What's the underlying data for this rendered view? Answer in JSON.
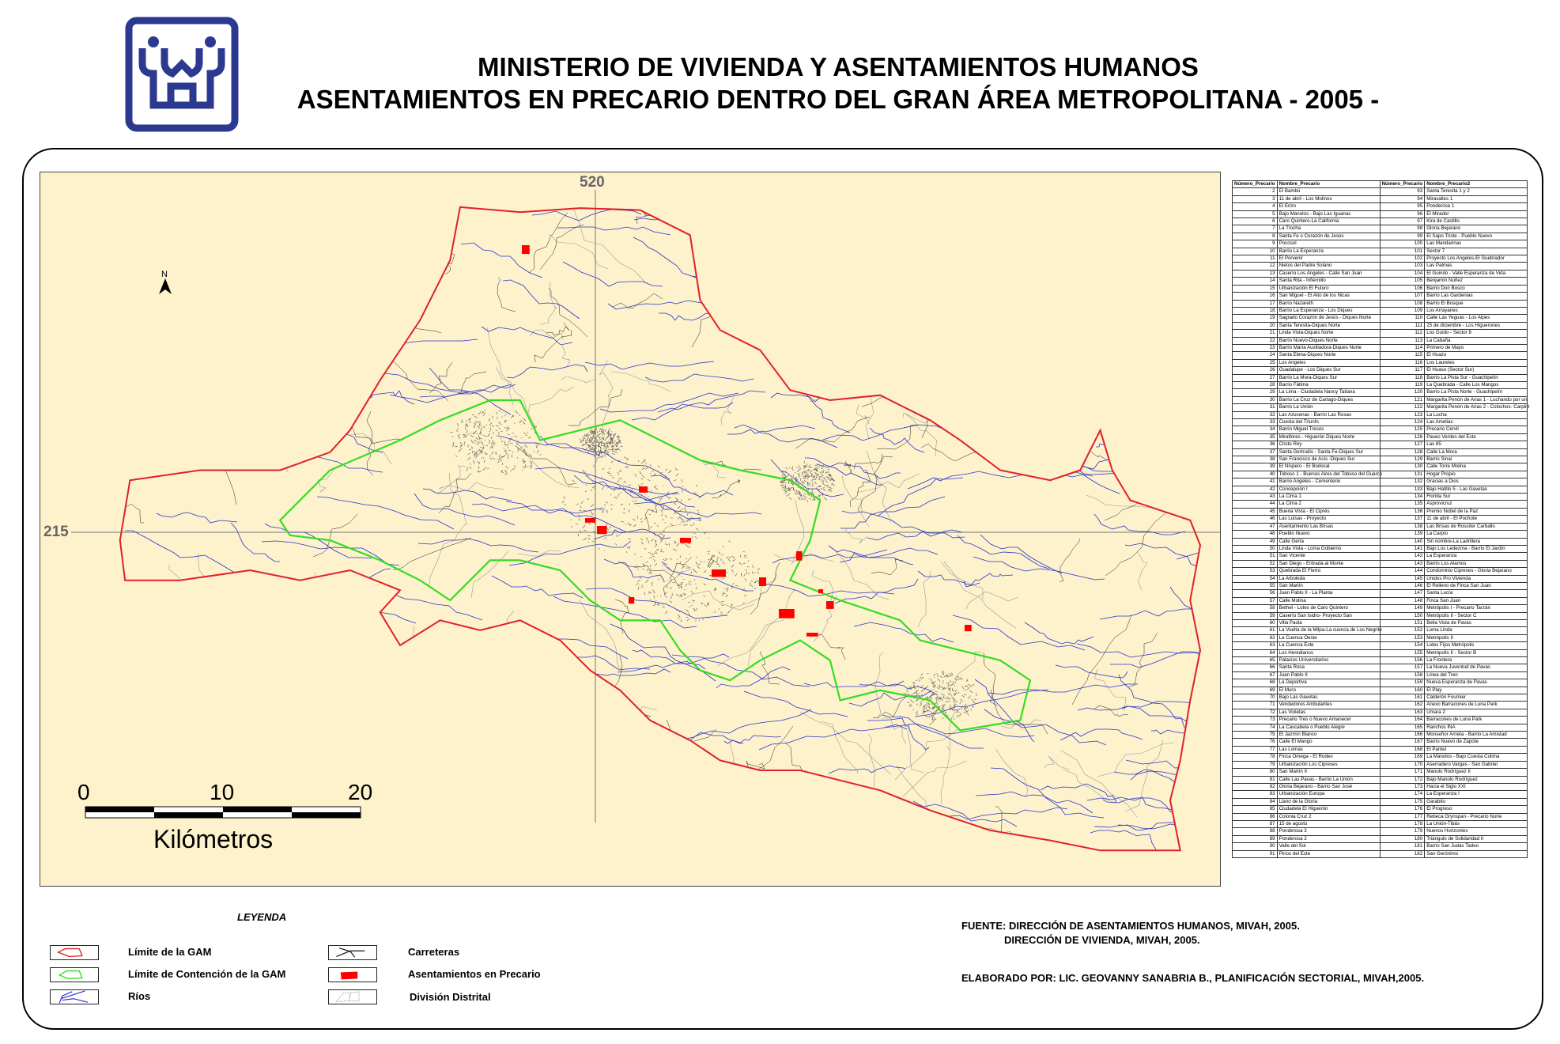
{
  "header": {
    "title_line1": "MINISTERIO DE VIVIENDA Y ASENTAMIENTOS HUMANOS",
    "title_line2": "ASENTAMIENTOS EN PRECARIO DENTRO DEL GRAN ÁREA METROPOLITANA - 2005 -",
    "logo_icon": "mivah-logo",
    "brand_color": "#2b3990"
  },
  "map": {
    "coord_x_label": "520",
    "coord_y_label": "215",
    "north_label": "N",
    "scale": {
      "ticks": [
        "0",
        "10",
        "20"
      ],
      "unit": "Kilómetros"
    },
    "colors": {
      "background": "#fdf2cc",
      "gam_limit": "#e0202a",
      "containment": "#33dd22",
      "rivers": "#2a35c8",
      "roads": "#222222",
      "settlements": "#ff0000",
      "districts": "#9a9a9a"
    }
  },
  "legend": {
    "title": "LEYENDA",
    "items": [
      {
        "label": "Límite de la GAM",
        "icon": "red-polygon"
      },
      {
        "label": "Límite de Contención de la GAM",
        "icon": "green-polygon"
      },
      {
        "label": "Ríos",
        "icon": "blue-lines"
      },
      {
        "label": "Carreteras",
        "icon": "black-lines"
      },
      {
        "label": "Asentamientos en Precario",
        "icon": "red-fill"
      },
      {
        "label": "División Distrital",
        "icon": "gray-dashed-polygon"
      }
    ]
  },
  "credits": {
    "fuente_1": "FUENTE: DIRECCIÓN DE ASENTAMIENTOS HUMANOS, MIVAH, 2005.",
    "fuente_2": "DIRECCIÓN DE VIVIENDA, MIVAH,  2005.",
    "elaborado": "ELABORADO POR: LIC. GEOVANNY SANABRIA B., PLANIFICACIÓN SECTORIAL, MIVAH,2005."
  },
  "table": {
    "headers": [
      "Número_Precario",
      "Nombre_Precario",
      "Número_Precario",
      "Nombre_Precario2"
    ],
    "rows": [
      [
        "2",
        "El Bambú",
        "93",
        "Santa Teresita 1 y 2"
      ],
      [
        "3",
        "11 de abril - Los Molinos",
        "94",
        "Miravalles 1"
      ],
      [
        "4",
        "El Erizo",
        "95",
        "Ponderosa 1"
      ],
      [
        "5",
        "Bajo Manolos - Bajo Las Iguanas",
        "96",
        "El Mirador"
      ],
      [
        "6",
        "Caro Quintero-La California",
        "97",
        "Kira de Castillo"
      ],
      [
        "7",
        "La Trocha",
        "98",
        "Gloria Bejarano"
      ],
      [
        "8",
        "Santa Fe o Corazón de Jesús",
        "99",
        "El Sapo Triste - Pueblo Nuevo"
      ],
      [
        "9",
        "Pocosol",
        "100",
        "Las Mandarinas"
      ],
      [
        "10",
        "Barrio La Esperanza",
        "101",
        "Sector 7"
      ],
      [
        "11",
        "El Porvenir",
        "102",
        "Proyecto Los Angeles-El Guebrador"
      ],
      [
        "12",
        "Nietos del Padre Solano",
        "103",
        "Las Palmas"
      ],
      [
        "13",
        "Caserío Los Ángeles - Calle San Juan",
        "104",
        "El Guindo - Valle Esperanza de Vida"
      ],
      [
        "14",
        "Santa Rita - Infiernillo",
        "105",
        "Benjamín Núñez"
      ],
      [
        "15",
        "Urbanización El Futuro",
        "106",
        "Barrio Don Bosco"
      ],
      [
        "16",
        "San Miguel - El Alto de los Nicas",
        "107",
        "Barrio Las Gardenias"
      ],
      [
        "17",
        "Barrio Nazareth",
        "108",
        "Barrio El Bosque"
      ],
      [
        "18",
        "Barrio La Esperanza - Los Diques",
        "109",
        "Los Arrayanes"
      ],
      [
        "19",
        "Sagrado Corazón de Jesús - Diques Norte",
        "110",
        "Calle Las Yeguas - Los Alpes"
      ],
      [
        "20",
        "Santa Teresita-Diques Norte",
        "111",
        "25 de diciembre - Los Higuerones"
      ],
      [
        "21",
        "Linda Vista-Diques Norte",
        "112",
        "Los Guido - Sector 8"
      ],
      [
        "22",
        "Barrio Nuevo-Diques Norte",
        "113",
        "La Cabaña"
      ],
      [
        "23",
        "Barrio María Auxiliadora-Diques Norte",
        "114",
        "Primero de Mayo"
      ],
      [
        "24",
        "Santa Elena-Diques Norte",
        "115",
        "El Huazo"
      ],
      [
        "25",
        "Los Angeles",
        "116",
        "Los Laureles"
      ],
      [
        "26",
        "Guadalupe - Los Diques Sur",
        "117",
        "El Huaso (Sector Sur)"
      ],
      [
        "27",
        "Barrio La Mora-Diques Sur",
        "118",
        "Barrio La Pista Sur - Guachipelín"
      ],
      [
        "28",
        "Barrio Fátima",
        "119",
        "La Quebrada - Calle Los Mangos"
      ],
      [
        "29",
        "La Lima - Ciudadela Nancy Tatiana",
        "120",
        "Barrio La Pista Norte - Guachipelín"
      ],
      [
        "30",
        "Barrio La Cruz de Cartago-Diques",
        "121",
        "Margarita Penón de Arias 1 - Luchando por un"
      ],
      [
        "31",
        "Barrio La Unión",
        "122",
        "Margarita Penón de Arias 2 - Colochos- Carpint"
      ],
      [
        "32",
        "Las Azucenas - Barrio Las Rosas",
        "123",
        "La Lucha"
      ],
      [
        "33",
        "Cuesta del Triunfo",
        "124",
        "Las Amelias"
      ],
      [
        "34",
        "Barrio Miguel Tresos",
        "125",
        "Precario Cervil"
      ],
      [
        "35",
        "Miraflores - Higuerón Diques Norte",
        "126",
        "Paseo Verdes del Este"
      ],
      [
        "36",
        "Cristo Rey",
        "127",
        "Las 85"
      ],
      [
        "37",
        "Santa Gertrudis - Santa Fe-Diques Sur",
        "128",
        "Calle La Mora"
      ],
      [
        "38",
        "San Francisco de Asís -Diques Sur",
        "129",
        "Barrio Sinaí"
      ],
      [
        "39",
        "El Níspero - El Bodocal",
        "130",
        "Calle Torre Molina"
      ],
      [
        "40",
        "Toboso 1 - Buenos Aires del Toboso del Guarco",
        "131",
        "Hogar Propio"
      ],
      [
        "41",
        "Barrio Angeles - Cementerio",
        "132",
        "Gracias a Dios"
      ],
      [
        "42",
        "Concepción I",
        "133",
        "Bajo Hatillo 5 - Las Gavetas"
      ],
      [
        "43",
        "La Cima 1",
        "134",
        "Florida Sur"
      ],
      [
        "44",
        "La Cima 2",
        "135",
        "Asprovicruz"
      ],
      [
        "45",
        "Buena Vista - El Ciprés",
        "136",
        "Premio Nobel de la Paz"
      ],
      [
        "46",
        "Las Luisas - Proyecto",
        "137",
        "11 de abril - El Pochote"
      ],
      [
        "47",
        "Asentamiento Las Brisas",
        "138",
        "Las Brisas de Rossiter Carballo"
      ],
      [
        "48",
        "Pueblo Nuevo",
        "139",
        "La Carpio"
      ],
      [
        "49",
        "Calle Gerta",
        "140",
        "Sin nombre-La Ladrillera"
      ],
      [
        "50",
        "Linda Vista - Loma Gobierno",
        "141",
        "Bajo Los Ledezma - Barrio El Jardín"
      ],
      [
        "51",
        "San Vicente",
        "142",
        "La Esperanza"
      ],
      [
        "52",
        "San Diego - Entrada al Monte",
        "143",
        "Barrio Los Alamos"
      ],
      [
        "53",
        "Quebrada El Fierro",
        "144",
        "Condominio Cipreses - Gloria Bejarano"
      ],
      [
        "54",
        "La Arboleda",
        "145",
        "Unidos Pro Vivienda"
      ],
      [
        "55",
        "San Martín",
        "146",
        "El Relleno de Finca San Juan"
      ],
      [
        "56",
        "Juan Pablo II - La Planta",
        "147",
        "Santa Lucía"
      ],
      [
        "57",
        "Calle Molina",
        "148",
        "Finca San Juan"
      ],
      [
        "58",
        "Bethel - Lotes de Caro Quintero",
        "149",
        "Metrópolis I - Precario Tarzán"
      ],
      [
        "59",
        "Caserío San Isidro- Proyecto San",
        "150",
        "Metrópolis II - Sector C"
      ],
      [
        "60",
        "Villa Paola",
        "151",
        "Bella Vista de Pavas"
      ],
      [
        "61",
        "La Vuelta de la Milpa-La cuenca de Los Negrito",
        "152",
        "Loma Linda"
      ],
      [
        "62",
        "La Cuenca Oeste",
        "153",
        "Metrópolis II"
      ],
      [
        "63",
        "La Cuenca Este",
        "154",
        "Lotes Fijos Metrópolis"
      ],
      [
        "64",
        "Los Heredianos",
        "155",
        "Metrópolis II - Sector B"
      ],
      [
        "65",
        "Palacios Universitarios",
        "156",
        "La Frontera"
      ],
      [
        "66",
        "Santa Rosa",
        "157",
        "La Nueva Juventud de Pavas"
      ],
      [
        "67",
        "Juan Pablo II",
        "158",
        "Línea del Tren"
      ],
      [
        "68",
        "La Deportiva",
        "159",
        "Nueva Esperanza de Pavas"
      ],
      [
        "69",
        "El Muro",
        "160",
        "El Play"
      ],
      [
        "70",
        "Bajo Las Gavetas",
        "161",
        "Calderón Fournier"
      ],
      [
        "71",
        "Vendedores Ambulantes",
        "162",
        "Anexo Barracones de Luna Park"
      ],
      [
        "72",
        "Las Violetas",
        "163",
        "Umara 2"
      ],
      [
        "73",
        "Precario Tres o Nuevo Amanecer",
        "164",
        "Barracones de Luna Park"
      ],
      [
        "74",
        "La Cascabela o Pueblo Alegre",
        "165",
        "Ranchos INA"
      ],
      [
        "75",
        "El Jazmín Blanco",
        "166",
        "Monseñor Arrieta - Barrio La Amistad"
      ],
      [
        "76",
        "Calle El Mango",
        "167",
        "Barrio Nuevo de Zapote"
      ],
      [
        "77",
        "Las Lomas",
        "168",
        "El Pantel"
      ],
      [
        "78",
        "Finca Omega - El Rodeo",
        "169",
        "La Manolos - Bajo Cuesta Colima"
      ],
      [
        "79",
        "Urbanización Los Cipreses",
        "170",
        "Aserradero Vargas - San Gabriel"
      ],
      [
        "80",
        "San Martín II",
        "171",
        "Manolo Rodríguez II"
      ],
      [
        "81",
        "Calle Las Pavas - Barrio La Unión",
        "172",
        "Bajo Manolo Rodríguez"
      ],
      [
        "82",
        "Gloria Bejarano - Barrio San José",
        "173",
        "Hacia el Siglo XXI"
      ],
      [
        "83",
        "Urbanización Europa",
        "174",
        "La Esperanza I"
      ],
      [
        "84",
        "Llano de la Gloria",
        "175",
        "Garabito"
      ],
      [
        "85",
        "Ciudadela El Higuerón",
        "176",
        "El Progreso"
      ],
      [
        "86",
        "Colonia Cruz 2",
        "177",
        "Rebeca Grynspan - Precario Norte"
      ],
      [
        "87",
        "15 de agosto",
        "178",
        "La Unión-Tibás"
      ],
      [
        "88",
        "Ponderosa 3",
        "179",
        "Nuevos Horizontes"
      ],
      [
        "89",
        "Ponderosa 2",
        "180",
        "Triángulo de Solidaridad II"
      ],
      [
        "90",
        "Valle del Sol",
        "181",
        "Barrio San Judas Tadeo"
      ],
      [
        "91",
        "Pinos del Este",
        "182",
        "San Gerónimo"
      ]
    ]
  }
}
